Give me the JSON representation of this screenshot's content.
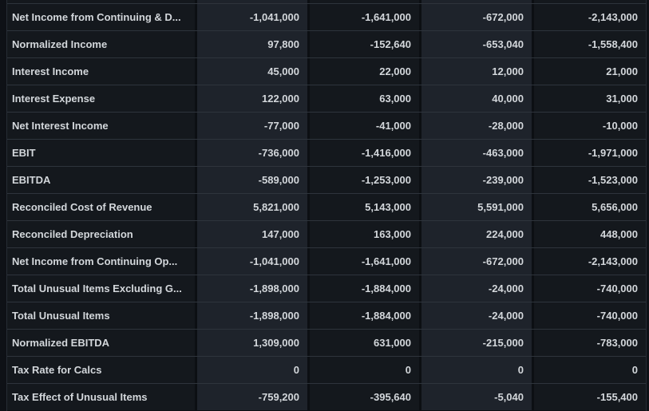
{
  "theme": {
    "page_bg": "#0e1116",
    "gap_color": "#0c0f13",
    "cell_dark": "#14181d",
    "cell_light": "#1e232b",
    "row_border": "#2e343c",
    "edge_border": "#262c34",
    "text_color": "#d3d7db"
  },
  "table": {
    "rows": [
      {
        "label": "Net Income from Continuing & D...",
        "values": [
          "-1,041,000",
          "-1,641,000",
          "-672,000",
          "-2,143,000"
        ]
      },
      {
        "label": "Normalized Income",
        "values": [
          "97,800",
          "-152,640",
          "-653,040",
          "-1,558,400"
        ]
      },
      {
        "label": "Interest Income",
        "values": [
          "45,000",
          "22,000",
          "12,000",
          "21,000"
        ]
      },
      {
        "label": "Interest Expense",
        "values": [
          "122,000",
          "63,000",
          "40,000",
          "31,000"
        ]
      },
      {
        "label": "Net Interest Income",
        "values": [
          "-77,000",
          "-41,000",
          "-28,000",
          "-10,000"
        ]
      },
      {
        "label": "EBIT",
        "values": [
          "-736,000",
          "-1,416,000",
          "-463,000",
          "-1,971,000"
        ]
      },
      {
        "label": "EBITDA",
        "values": [
          "-589,000",
          "-1,253,000",
          "-239,000",
          "-1,523,000"
        ]
      },
      {
        "label": "Reconciled Cost of Revenue",
        "values": [
          "5,821,000",
          "5,143,000",
          "5,591,000",
          "5,656,000"
        ]
      },
      {
        "label": "Reconciled Depreciation",
        "values": [
          "147,000",
          "163,000",
          "224,000",
          "448,000"
        ]
      },
      {
        "label": "Net Income from Continuing Op...",
        "values": [
          "-1,041,000",
          "-1,641,000",
          "-672,000",
          "-2,143,000"
        ]
      },
      {
        "label": "Total Unusual Items Excluding G...",
        "values": [
          "-1,898,000",
          "-1,884,000",
          "-24,000",
          "-740,000"
        ]
      },
      {
        "label": "Total Unusual Items",
        "values": [
          "-1,898,000",
          "-1,884,000",
          "-24,000",
          "-740,000"
        ]
      },
      {
        "label": "Normalized EBITDA",
        "values": [
          "1,309,000",
          "631,000",
          "-215,000",
          "-783,000"
        ]
      },
      {
        "label": "Tax Rate for Calcs",
        "values": [
          "0",
          "0",
          "0",
          "0"
        ]
      },
      {
        "label": "Tax Effect of Unusual Items",
        "values": [
          "-759,200",
          "-395,640",
          "-5,040",
          "-155,400"
        ]
      }
    ]
  }
}
